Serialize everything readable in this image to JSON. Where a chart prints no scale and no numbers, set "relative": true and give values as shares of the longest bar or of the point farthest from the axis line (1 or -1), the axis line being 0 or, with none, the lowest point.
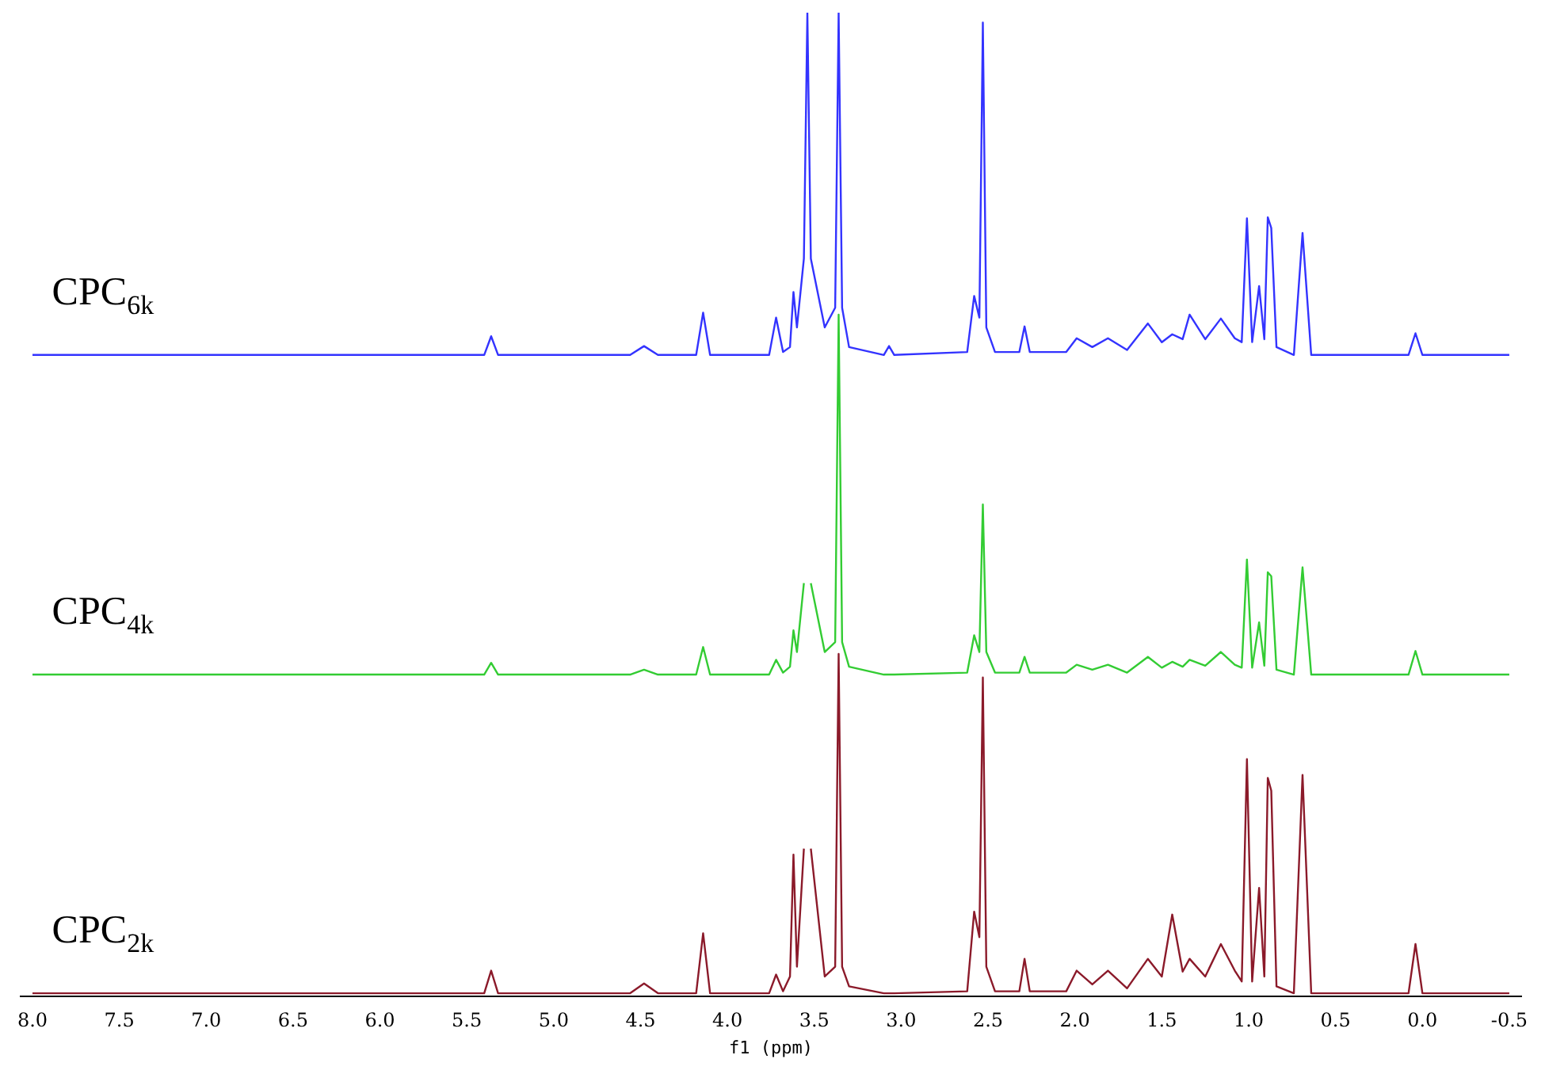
{
  "chart_data": {
    "type": "line",
    "relative": true,
    "xlabel": "f1 (ppm)",
    "tick_labels": "x",
    "marker": "none",
    "xlim": [
      8.07,
      -0.57
    ],
    "xticks": [
      {
        "value": 8,
        "label": "8.0"
      },
      {
        "value": 7.5,
        "label": "7.5"
      },
      {
        "value": 7,
        "label": "7.0"
      },
      {
        "value": 6.5,
        "label": "6.5"
      },
      {
        "value": 6,
        "label": "6.0"
      },
      {
        "value": 5.5,
        "label": "5.5"
      },
      {
        "value": 5,
        "label": "5.0"
      },
      {
        "value": 4.5,
        "label": "4.5"
      },
      {
        "value": 4,
        "label": "4.0"
      },
      {
        "value": 3.5,
        "label": "3.5"
      },
      {
        "value": 3,
        "label": "3.0"
      },
      {
        "value": 2.5,
        "label": "2.5"
      },
      {
        "value": 2,
        "label": "2.0"
      },
      {
        "value": 1.5,
        "label": "1.5"
      },
      {
        "value": 1,
        "label": "1.0"
      },
      {
        "value": 0.5,
        "label": "0.5"
      },
      {
        "value": 0,
        "label": "0.0"
      },
      {
        "value": -0.5,
        "label": "-0.5"
      }
    ],
    "x": [
      8.0,
      5.4,
      5.36,
      5.32,
      4.56,
      4.48,
      4.4,
      4.18,
      4.14,
      4.1,
      3.76,
      3.72,
      3.68,
      3.64,
      3.62,
      3.6,
      3.56,
      3.54,
      3.52,
      3.44,
      3.38,
      3.36,
      3.34,
      3.3,
      3.1,
      3.07,
      3.04,
      2.62,
      2.58,
      2.55,
      2.53,
      2.51,
      2.46,
      2.32,
      2.29,
      2.26,
      2.05,
      1.99,
      1.9,
      1.81,
      1.7,
      1.58,
      1.5,
      1.44,
      1.38,
      1.34,
      1.25,
      1.16,
      1.08,
      1.04,
      1.01,
      0.98,
      0.94,
      0.91,
      0.89,
      0.87,
      0.84,
      0.74,
      0.69,
      0.64,
      0.08,
      0.04,
      0.0,
      -0.5
    ],
    "series": [
      {
        "name": "CPC$_{6k}$",
        "color": "#3333ff",
        "values": [
          0.652,
          0.652,
          0.671,
          0.652,
          0.652,
          0.661,
          0.652,
          0.652,
          0.695,
          0.652,
          0.652,
          0.69,
          0.655,
          0.66,
          0.716,
          0.68,
          0.75,
          1,
          0.75,
          0.68,
          0.7,
          1,
          0.7,
          0.66,
          0.652,
          0.661,
          0.652,
          0.655,
          0.712,
          0.69,
          0.99,
          0.68,
          0.655,
          0.655,
          0.681,
          0.655,
          0.655,
          0.669,
          0.66,
          0.669,
          0.657,
          0.684,
          0.665,
          0.673,
          0.668,
          0.693,
          0.668,
          0.689,
          0.669,
          0.665,
          0.791,
          0.665,
          0.722,
          0.668,
          0.792,
          0.781,
          0.66,
          0.652,
          0.776,
          0.652,
          0.652,
          0.674,
          0.652,
          0.652
        ]
      },
      {
        "name": "CPC$_{4k}$",
        "color": "#33cc33",
        "values": [
          0.327,
          0.327,
          0.339,
          0.327,
          0.327,
          0.332,
          0.327,
          0.327,
          0.355,
          0.327,
          0.327,
          0.342,
          0.329,
          0.335,
          0.372,
          0.35,
          0.42,
          null,
          0.42,
          0.35,
          0.36,
          0.693,
          0.36,
          0.335,
          0.327,
          0.327,
          0.327,
          0.329,
          0.367,
          0.35,
          0.5,
          0.35,
          0.329,
          0.329,
          0.345,
          0.329,
          0.329,
          0.337,
          0.332,
          0.337,
          0.329,
          0.345,
          0.334,
          0.34,
          0.335,
          0.342,
          0.336,
          0.35,
          0.337,
          0.334,
          0.444,
          0.334,
          0.38,
          0.336,
          0.431,
          0.427,
          0.332,
          0.327,
          0.436,
          0.327,
          0.327,
          0.351,
          0.327,
          0.327
        ]
      },
      {
        "name": "CPC$_{2k}$",
        "color": "#8b1a2a",
        "values": [
          0.003,
          0.003,
          0.026,
          0.003,
          0.003,
          0.013,
          0.003,
          0.003,
          0.064,
          0.003,
          0.003,
          0.022,
          0.005,
          0.02,
          0.144,
          0.03,
          0.15,
          null,
          0.15,
          0.02,
          0.03,
          0.348,
          0.03,
          0.01,
          0.003,
          0.003,
          0.003,
          0.005,
          0.086,
          0.06,
          0.324,
          0.03,
          0.005,
          0.005,
          0.038,
          0.005,
          0.005,
          0.026,
          0.012,
          0.026,
          0.008,
          0.038,
          0.02,
          0.083,
          0.025,
          0.038,
          0.02,
          0.053,
          0.026,
          0.015,
          0.241,
          0.015,
          0.11,
          0.02,
          0.222,
          0.209,
          0.01,
          0.003,
          0.225,
          0.003,
          0.003,
          0.053,
          0.003,
          0.003
        ]
      }
    ]
  }
}
